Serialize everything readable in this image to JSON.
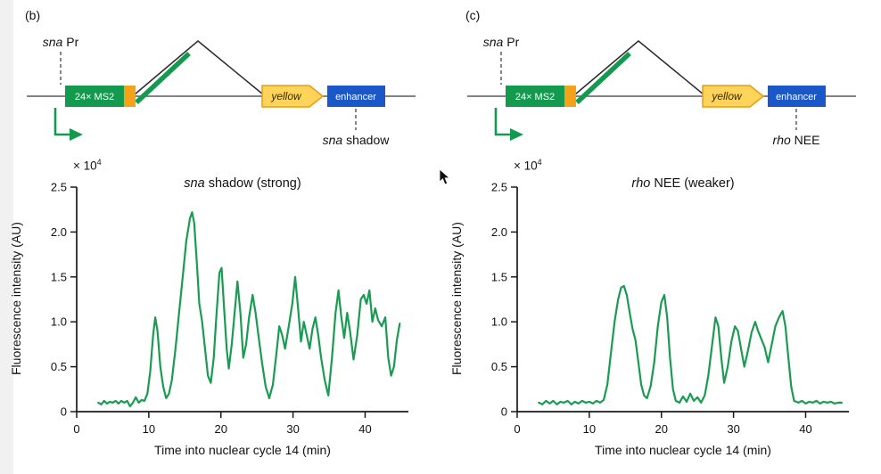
{
  "colors": {
    "trace": "#1a9b52",
    "construct_green": "#149a4e",
    "linker_orange": "#f5a21b",
    "gene_yellow": "#ffd45a",
    "gene_yellow_border": "#e89c10",
    "enhancer_blue": "#1a57c8"
  },
  "panels": [
    {
      "label": "(b)",
      "construct": {
        "promoter_italic": "sna",
        "promoter_rest": " Pr",
        "ms2_label": "24× MS2",
        "gene_label": "yellow",
        "enhancer_label": "enhancer",
        "tag_italic": "sna",
        "tag_rest": " shadow"
      }
    },
    {
      "label": "(c)",
      "construct": {
        "promoter_italic": "sna",
        "promoter_rest": " Pr",
        "ms2_label": "24× MS2",
        "gene_label": "yellow",
        "enhancer_label": "enhancer",
        "tag_italic": "rho",
        "tag_rest": " NEE"
      }
    }
  ],
  "chart_data": [
    {
      "type": "line",
      "title_italic": "sna",
      "title_rest": " shadow (strong)",
      "xlabel": "Time into nuclear cycle 14 (min)",
      "ylabel": "Fluorescence intensity (AU)",
      "y_scale": "× 10",
      "y_scale_exp": "4",
      "xlim": [
        0,
        46
      ],
      "ylim": [
        0,
        2.5
      ],
      "xtick_vals": [
        0,
        10,
        20,
        30,
        40
      ],
      "xtick_labels": [
        "0",
        "10",
        "20",
        "30",
        "40"
      ],
      "ytick_vals": [
        0,
        0.5,
        1.0,
        1.5,
        2.0,
        2.5
      ],
      "ytick_labels": [
        "0",
        "0.5",
        "1.0",
        "1.5",
        "2.0",
        "2.5"
      ],
      "legend": "none",
      "grid": false,
      "points": [
        [
          3,
          0.1
        ],
        [
          3.4,
          0.08
        ],
        [
          3.8,
          0.12
        ],
        [
          4.2,
          0.09
        ],
        [
          4.6,
          0.11
        ],
        [
          5,
          0.1
        ],
        [
          5.4,
          0.12
        ],
        [
          5.8,
          0.09
        ],
        [
          6.2,
          0.12
        ],
        [
          6.6,
          0.1
        ],
        [
          7,
          0.12
        ],
        [
          7.4,
          0.06
        ],
        [
          7.8,
          0.1
        ],
        [
          8.2,
          0.16
        ],
        [
          8.6,
          0.1
        ],
        [
          9,
          0.13
        ],
        [
          9.4,
          0.12
        ],
        [
          9.8,
          0.2
        ],
        [
          10.2,
          0.45
        ],
        [
          10.6,
          0.85
        ],
        [
          10.9,
          1.05
        ],
        [
          11.2,
          0.9
        ],
        [
          11.6,
          0.5
        ],
        [
          12,
          0.28
        ],
        [
          12.4,
          0.15
        ],
        [
          12.8,
          0.2
        ],
        [
          13.2,
          0.35
        ],
        [
          13.7,
          0.7
        ],
        [
          14.2,
          1.1
        ],
        [
          14.7,
          1.5
        ],
        [
          15.2,
          1.9
        ],
        [
          15.7,
          2.15
        ],
        [
          16,
          2.22
        ],
        [
          16.3,
          2.1
        ],
        [
          16.7,
          1.6
        ],
        [
          17,
          1.2
        ],
        [
          17.4,
          1.0
        ],
        [
          17.8,
          0.7
        ],
        [
          18.2,
          0.4
        ],
        [
          18.6,
          0.32
        ],
        [
          19,
          0.6
        ],
        [
          19.4,
          1.1
        ],
        [
          19.8,
          1.55
        ],
        [
          20.1,
          1.6
        ],
        [
          20.4,
          1.2
        ],
        [
          20.8,
          0.7
        ],
        [
          21.1,
          0.48
        ],
        [
          21.5,
          0.75
        ],
        [
          21.9,
          1.1
        ],
        [
          22.3,
          1.45
        ],
        [
          22.7,
          1.1
        ],
        [
          23.1,
          0.6
        ],
        [
          23.5,
          0.75
        ],
        [
          23.9,
          1.05
        ],
        [
          24.4,
          1.3
        ],
        [
          24.8,
          1.1
        ],
        [
          25.2,
          0.85
        ],
        [
          25.7,
          0.55
        ],
        [
          26.2,
          0.28
        ],
        [
          26.7,
          0.15
        ],
        [
          27.2,
          0.3
        ],
        [
          27.7,
          0.65
        ],
        [
          28.1,
          0.95
        ],
        [
          28.5,
          0.85
        ],
        [
          28.9,
          0.7
        ],
        [
          29.4,
          0.95
        ],
        [
          29.9,
          1.2
        ],
        [
          30.3,
          1.5
        ],
        [
          30.7,
          1.15
        ],
        [
          31.1,
          0.78
        ],
        [
          31.5,
          1.0
        ],
        [
          31.9,
          0.85
        ],
        [
          32.3,
          0.7
        ],
        [
          32.7,
          0.92
        ],
        [
          33.1,
          1.05
        ],
        [
          33.5,
          0.85
        ],
        [
          33.9,
          0.6
        ],
        [
          34.4,
          0.35
        ],
        [
          34.9,
          0.18
        ],
        [
          35.4,
          0.6
        ],
        [
          35.9,
          1.1
        ],
        [
          36.3,
          1.35
        ],
        [
          36.7,
          1.05
        ],
        [
          37.1,
          0.82
        ],
        [
          37.5,
          1.1
        ],
        [
          37.9,
          0.9
        ],
        [
          38.4,
          0.58
        ],
        [
          38.9,
          0.85
        ],
        [
          39.4,
          1.25
        ],
        [
          39.8,
          1.3
        ],
        [
          40.2,
          1.2
        ],
        [
          40.6,
          1.35
        ],
        [
          41,
          1.0
        ],
        [
          41.4,
          1.15
        ],
        [
          41.8,
          1.02
        ],
        [
          42.3,
          0.95
        ],
        [
          42.8,
          1.05
        ],
        [
          43.2,
          0.6
        ],
        [
          43.6,
          0.4
        ],
        [
          44,
          0.5
        ],
        [
          44.4,
          0.8
        ],
        [
          44.8,
          0.98
        ]
      ]
    },
    {
      "type": "line",
      "title_italic": "rho",
      "title_rest": " NEE (weaker)",
      "xlabel": "Time into nuclear cycle 14 (min)",
      "ylabel": "Fluorescence intensity (AU)",
      "y_scale": "× 10",
      "y_scale_exp": "4",
      "xlim": [
        0,
        46
      ],
      "ylim": [
        0,
        2.5
      ],
      "xtick_vals": [
        0,
        10,
        20,
        30,
        40
      ],
      "xtick_labels": [
        "0",
        "10",
        "20",
        "30",
        "40"
      ],
      "ytick_vals": [
        0,
        0.5,
        1.0,
        1.5,
        2.0,
        2.5
      ],
      "ytick_labels": [
        "0",
        "0.5",
        "1.0",
        "1.5",
        "2.0",
        "2.5"
      ],
      "legend": "none",
      "grid": false,
      "points": [
        [
          3,
          0.1
        ],
        [
          3.5,
          0.08
        ],
        [
          4,
          0.12
        ],
        [
          4.5,
          0.09
        ],
        [
          5,
          0.12
        ],
        [
          5.5,
          0.08
        ],
        [
          6,
          0.11
        ],
        [
          6.5,
          0.1
        ],
        [
          7,
          0.12
        ],
        [
          7.5,
          0.08
        ],
        [
          8,
          0.11
        ],
        [
          8.5,
          0.09
        ],
        [
          9,
          0.12
        ],
        [
          9.5,
          0.1
        ],
        [
          10,
          0.11
        ],
        [
          10.5,
          0.09
        ],
        [
          11,
          0.12
        ],
        [
          11.5,
          0.1
        ],
        [
          12,
          0.13
        ],
        [
          12.5,
          0.3
        ],
        [
          13,
          0.65
        ],
        [
          13.5,
          1.0
        ],
        [
          14,
          1.25
        ],
        [
          14.4,
          1.38
        ],
        [
          14.8,
          1.4
        ],
        [
          15.2,
          1.3
        ],
        [
          15.6,
          1.1
        ],
        [
          16,
          0.92
        ],
        [
          16.4,
          0.8
        ],
        [
          16.8,
          0.55
        ],
        [
          17.2,
          0.3
        ],
        [
          17.6,
          0.18
        ],
        [
          18,
          0.15
        ],
        [
          18.5,
          0.28
        ],
        [
          19,
          0.55
        ],
        [
          19.5,
          0.95
        ],
        [
          20,
          1.22
        ],
        [
          20.4,
          1.3
        ],
        [
          20.8,
          1.05
        ],
        [
          21.2,
          0.6
        ],
        [
          21.6,
          0.25
        ],
        [
          22,
          0.12
        ],
        [
          22.5,
          0.1
        ],
        [
          23,
          0.17
        ],
        [
          23.5,
          0.11
        ],
        [
          24,
          0.2
        ],
        [
          24.5,
          0.12
        ],
        [
          25,
          0.16
        ],
        [
          25.5,
          0.1
        ],
        [
          26,
          0.18
        ],
        [
          26.5,
          0.4
        ],
        [
          27,
          0.72
        ],
        [
          27.5,
          1.05
        ],
        [
          27.9,
          0.95
        ],
        [
          28.3,
          0.6
        ],
        [
          28.7,
          0.32
        ],
        [
          29.2,
          0.5
        ],
        [
          29.7,
          0.78
        ],
        [
          30.2,
          0.95
        ],
        [
          30.6,
          0.9
        ],
        [
          31,
          0.72
        ],
        [
          31.5,
          0.5
        ],
        [
          32,
          0.68
        ],
        [
          32.5,
          0.88
        ],
        [
          33,
          1.0
        ],
        [
          33.4,
          0.9
        ],
        [
          33.8,
          0.82
        ],
        [
          34.3,
          0.72
        ],
        [
          34.8,
          0.55
        ],
        [
          35.3,
          0.75
        ],
        [
          35.8,
          0.95
        ],
        [
          36.3,
          1.05
        ],
        [
          36.8,
          1.12
        ],
        [
          37.2,
          0.95
        ],
        [
          37.6,
          0.6
        ],
        [
          38,
          0.28
        ],
        [
          38.4,
          0.12
        ],
        [
          39,
          0.1
        ],
        [
          39.5,
          0.12
        ],
        [
          40,
          0.09
        ],
        [
          40.5,
          0.11
        ],
        [
          41,
          0.1
        ],
        [
          41.5,
          0.12
        ],
        [
          42,
          0.09
        ],
        [
          42.5,
          0.11
        ],
        [
          43,
          0.1
        ],
        [
          43.5,
          0.11
        ],
        [
          44,
          0.09
        ],
        [
          44.5,
          0.1
        ],
        [
          45,
          0.1
        ]
      ]
    }
  ]
}
